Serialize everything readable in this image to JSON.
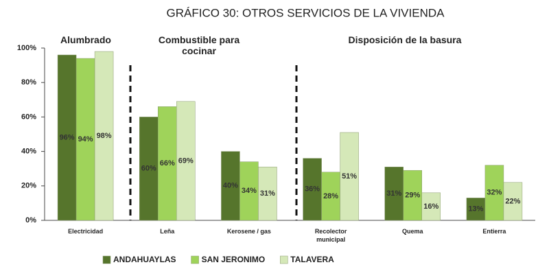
{
  "chart_data": {
    "type": "bar",
    "title": "GRÁFICO 30: OTROS SERVICIOS DE LA VIVIENDA",
    "annotations": [
      "Alumbrado",
      "Combustible para cocinar",
      "Disposición de la basura"
    ],
    "categories": [
      "Electricidad",
      "Leña",
      "Kerosene / gas",
      "Recolector municipal",
      "Quema",
      "Entierra"
    ],
    "series": [
      {
        "name": "ANDAHUAYLAS",
        "color": "#56752c",
        "values": [
          96,
          60,
          40,
          36,
          31,
          13
        ],
        "value_labels": [
          "96%",
          "60%",
          "40%",
          "36%",
          "31%",
          "13%"
        ]
      },
      {
        "name": "SAN JERONIMO",
        "color": "#9fd35a",
        "values": [
          94,
          66,
          34,
          28,
          29,
          32
        ],
        "value_labels": [
          "94%",
          "66%",
          "34%",
          "28%",
          "29%",
          "32%"
        ]
      },
      {
        "name": "TALAVERA",
        "color": "#d5e8b8",
        "values": [
          98,
          69,
          31,
          51,
          16,
          22
        ],
        "value_labels": [
          "98%",
          "69%",
          "31%",
          "51%",
          "16%",
          "22%"
        ]
      }
    ],
    "ylim": [
      0,
      100
    ],
    "yticks": [
      {
        "value": 0,
        "label": "0%"
      },
      {
        "value": 20,
        "label": "20%"
      },
      {
        "value": 40,
        "label": "40%"
      },
      {
        "value": 60,
        "label": "60%"
      },
      {
        "value": 80,
        "label": "80%"
      },
      {
        "value": 100,
        "label": "100%"
      }
    ],
    "legend": "bottom"
  }
}
